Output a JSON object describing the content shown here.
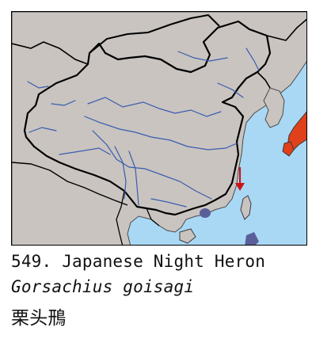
{
  "map": {
    "colors": {
      "sea": "#a9d8f4",
      "land": "#c9c4c0",
      "border": "#000000",
      "rivers": "#3a5cb0",
      "range_highlight": "#e0401a",
      "marker_arrow": "#cc1414",
      "range_dot": "#5a5f9a"
    },
    "icons": [
      "red-arrow-icon"
    ]
  },
  "caption": {
    "number_and_english_name": "549. Japanese Night Heron",
    "scientific_name": "Gorsachius goisagi",
    "chinese_name": "栗头鳽"
  }
}
